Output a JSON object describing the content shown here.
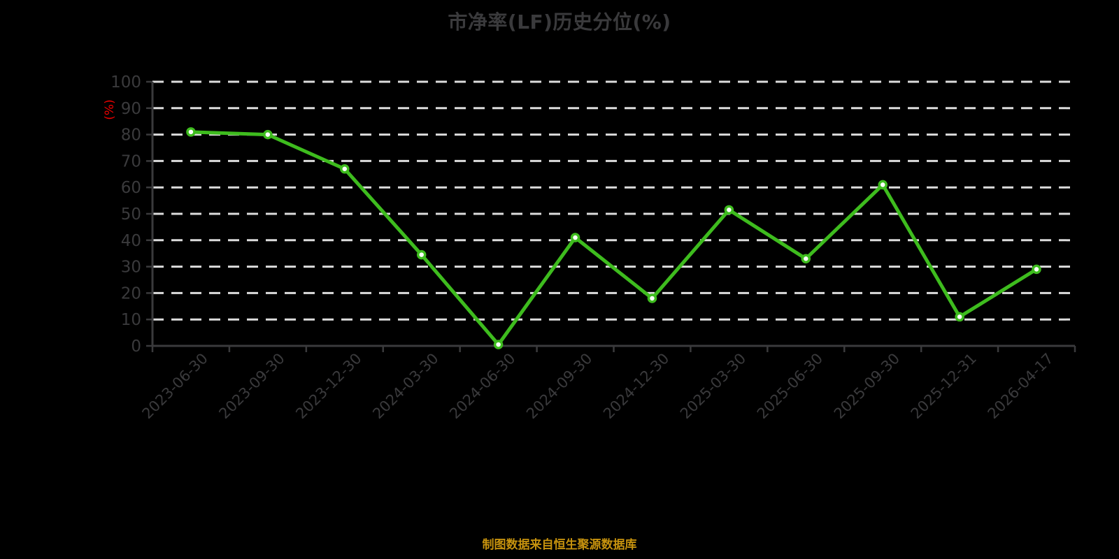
{
  "page": {
    "background": "#000000"
  },
  "header": {
    "title": "市净率(LF)历史分位(%)"
  },
  "footer": {
    "source_note": "制图数据来自恒生聚源数据库"
  },
  "chart_data": {
    "type": "line",
    "title": "市净率(LF)历史分位(%)",
    "ylabel": "(%)",
    "xlabel": "",
    "categories": [
      "2023-06-30",
      "2023-09-30",
      "2023-12-30",
      "2024-03-30",
      "2024-06-30",
      "2024-09-30",
      "2024-12-30",
      "2025-03-30",
      "2025-06-30",
      "2025-09-30",
      "2025-12-31",
      "2026-04-17"
    ],
    "values": [
      81,
      80,
      67,
      34.5,
      0.5,
      41,
      18,
      51.5,
      33,
      61,
      11,
      29
    ],
    "ylim": [
      0,
      100
    ],
    "yticks": [
      0,
      10,
      20,
      30,
      40,
      50,
      60,
      70,
      80,
      90,
      100
    ],
    "grid": {
      "horizontal": true,
      "style": "dashed",
      "at_zero": false
    },
    "legend": "none",
    "x_tick_label_rotation_deg": -45,
    "marker": {
      "shape": "circle",
      "fill": "#ffffff"
    },
    "colors": {
      "line": "#3ebc1e",
      "grid": "#dcdcdc",
      "axis": "#3a3a3c",
      "tick_label": "#3a3a3c",
      "title": "#3a3a3c",
      "ylabel": "#ee0000",
      "footer": "#c6920e",
      "background": "#000000"
    }
  }
}
